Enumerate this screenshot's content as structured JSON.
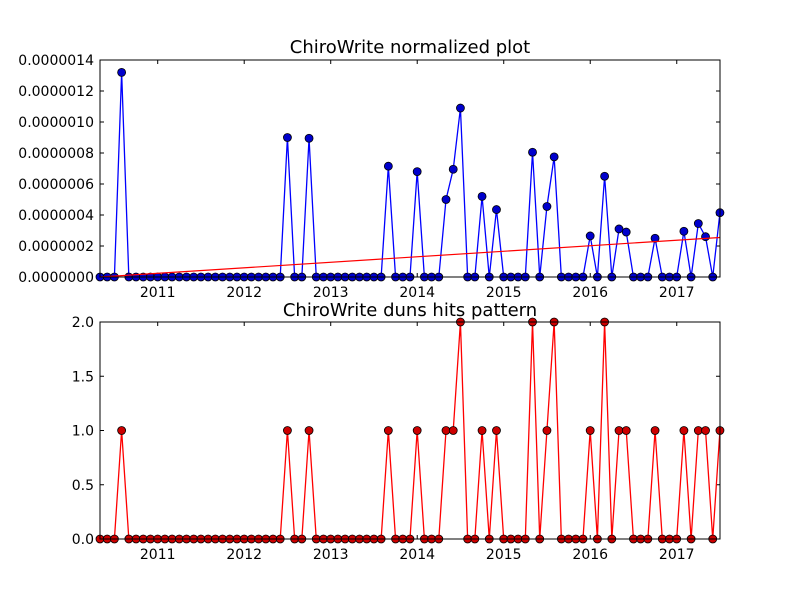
{
  "chart_data": [
    {
      "type": "line",
      "title": "ChiroWrite normalized plot",
      "xlabel": "",
      "ylabel": "",
      "x_start_year": 2010.333,
      "x_step_years": 0.08333,
      "xlim": [
        2010.333,
        2017.5
      ],
      "ylim": [
        0,
        1.4e-06
      ],
      "xticks": [
        "2011",
        "2012",
        "2013",
        "2014",
        "2015",
        "2016",
        "2017"
      ],
      "yticks": [
        "0.0000000",
        "0.0000002",
        "0.0000004",
        "0.0000006",
        "0.0000008",
        "0.0000010",
        "0.0000012",
        "0.0000014"
      ],
      "grid": false,
      "series": [
        {
          "color": "#0000ff",
          "marker_color": "#0000cc",
          "values": [
            0,
            0,
            0,
            1.32e-06,
            0,
            0,
            0,
            0,
            0,
            0,
            0,
            0,
            0,
            0,
            0,
            0,
            0,
            0,
            0,
            0,
            0,
            0,
            0,
            0,
            0,
            0,
            9e-07,
            0,
            0,
            8.95e-07,
            0,
            0,
            0,
            0,
            0,
            0,
            0,
            0,
            0,
            0,
            7.15e-07,
            0,
            0,
            0,
            6.8e-07,
            0,
            0,
            0,
            5e-07,
            6.95e-07,
            1.09e-06,
            0,
            0,
            5.2e-07,
            0,
            4.35e-07,
            0,
            0,
            0,
            0,
            8.05e-07,
            0,
            4.55e-07,
            7.75e-07,
            0,
            0,
            0,
            0,
            2.65e-07,
            0,
            6.5e-07,
            0,
            3.1e-07,
            2.9e-07,
            0,
            0,
            0,
            2.5e-07,
            0,
            0,
            0,
            2.95e-07,
            0,
            3.45e-07,
            2.6e-07,
            0,
            4.15e-07
          ]
        },
        {
          "color": "#ff0000",
          "kind": "trend",
          "x": [
            2010.333,
            2017.5
          ],
          "values": [
            0,
            2.55e-07
          ]
        }
      ]
    },
    {
      "type": "line",
      "title": "ChiroWrite duns hits pattern",
      "xlabel": "",
      "ylabel": "",
      "x_start_year": 2010.333,
      "x_step_years": 0.08333,
      "xlim": [
        2010.333,
        2017.5
      ],
      "ylim": [
        0,
        2.0
      ],
      "xticks": [
        "2011",
        "2012",
        "2013",
        "2014",
        "2015",
        "2016",
        "2017"
      ],
      "yticks": [
        "0.0",
        "0.5",
        "1.0",
        "1.5",
        "2.0"
      ],
      "grid": false,
      "series": [
        {
          "color": "#ff0000",
          "marker_color": "#cc0000",
          "values": [
            0,
            0,
            0,
            1,
            0,
            0,
            0,
            0,
            0,
            0,
            0,
            0,
            0,
            0,
            0,
            0,
            0,
            0,
            0,
            0,
            0,
            0,
            0,
            0,
            0,
            0,
            1,
            0,
            0,
            1,
            0,
            0,
            0,
            0,
            0,
            0,
            0,
            0,
            0,
            0,
            1,
            0,
            0,
            0,
            1,
            0,
            0,
            0,
            1,
            1,
            2,
            0,
            0,
            1,
            0,
            1,
            0,
            0,
            0,
            0,
            2,
            0,
            1,
            2,
            0,
            0,
            0,
            0,
            1,
            0,
            2,
            0,
            1,
            1,
            0,
            0,
            0,
            1,
            0,
            0,
            0,
            1,
            0,
            1,
            1,
            0,
            1
          ]
        }
      ]
    }
  ]
}
